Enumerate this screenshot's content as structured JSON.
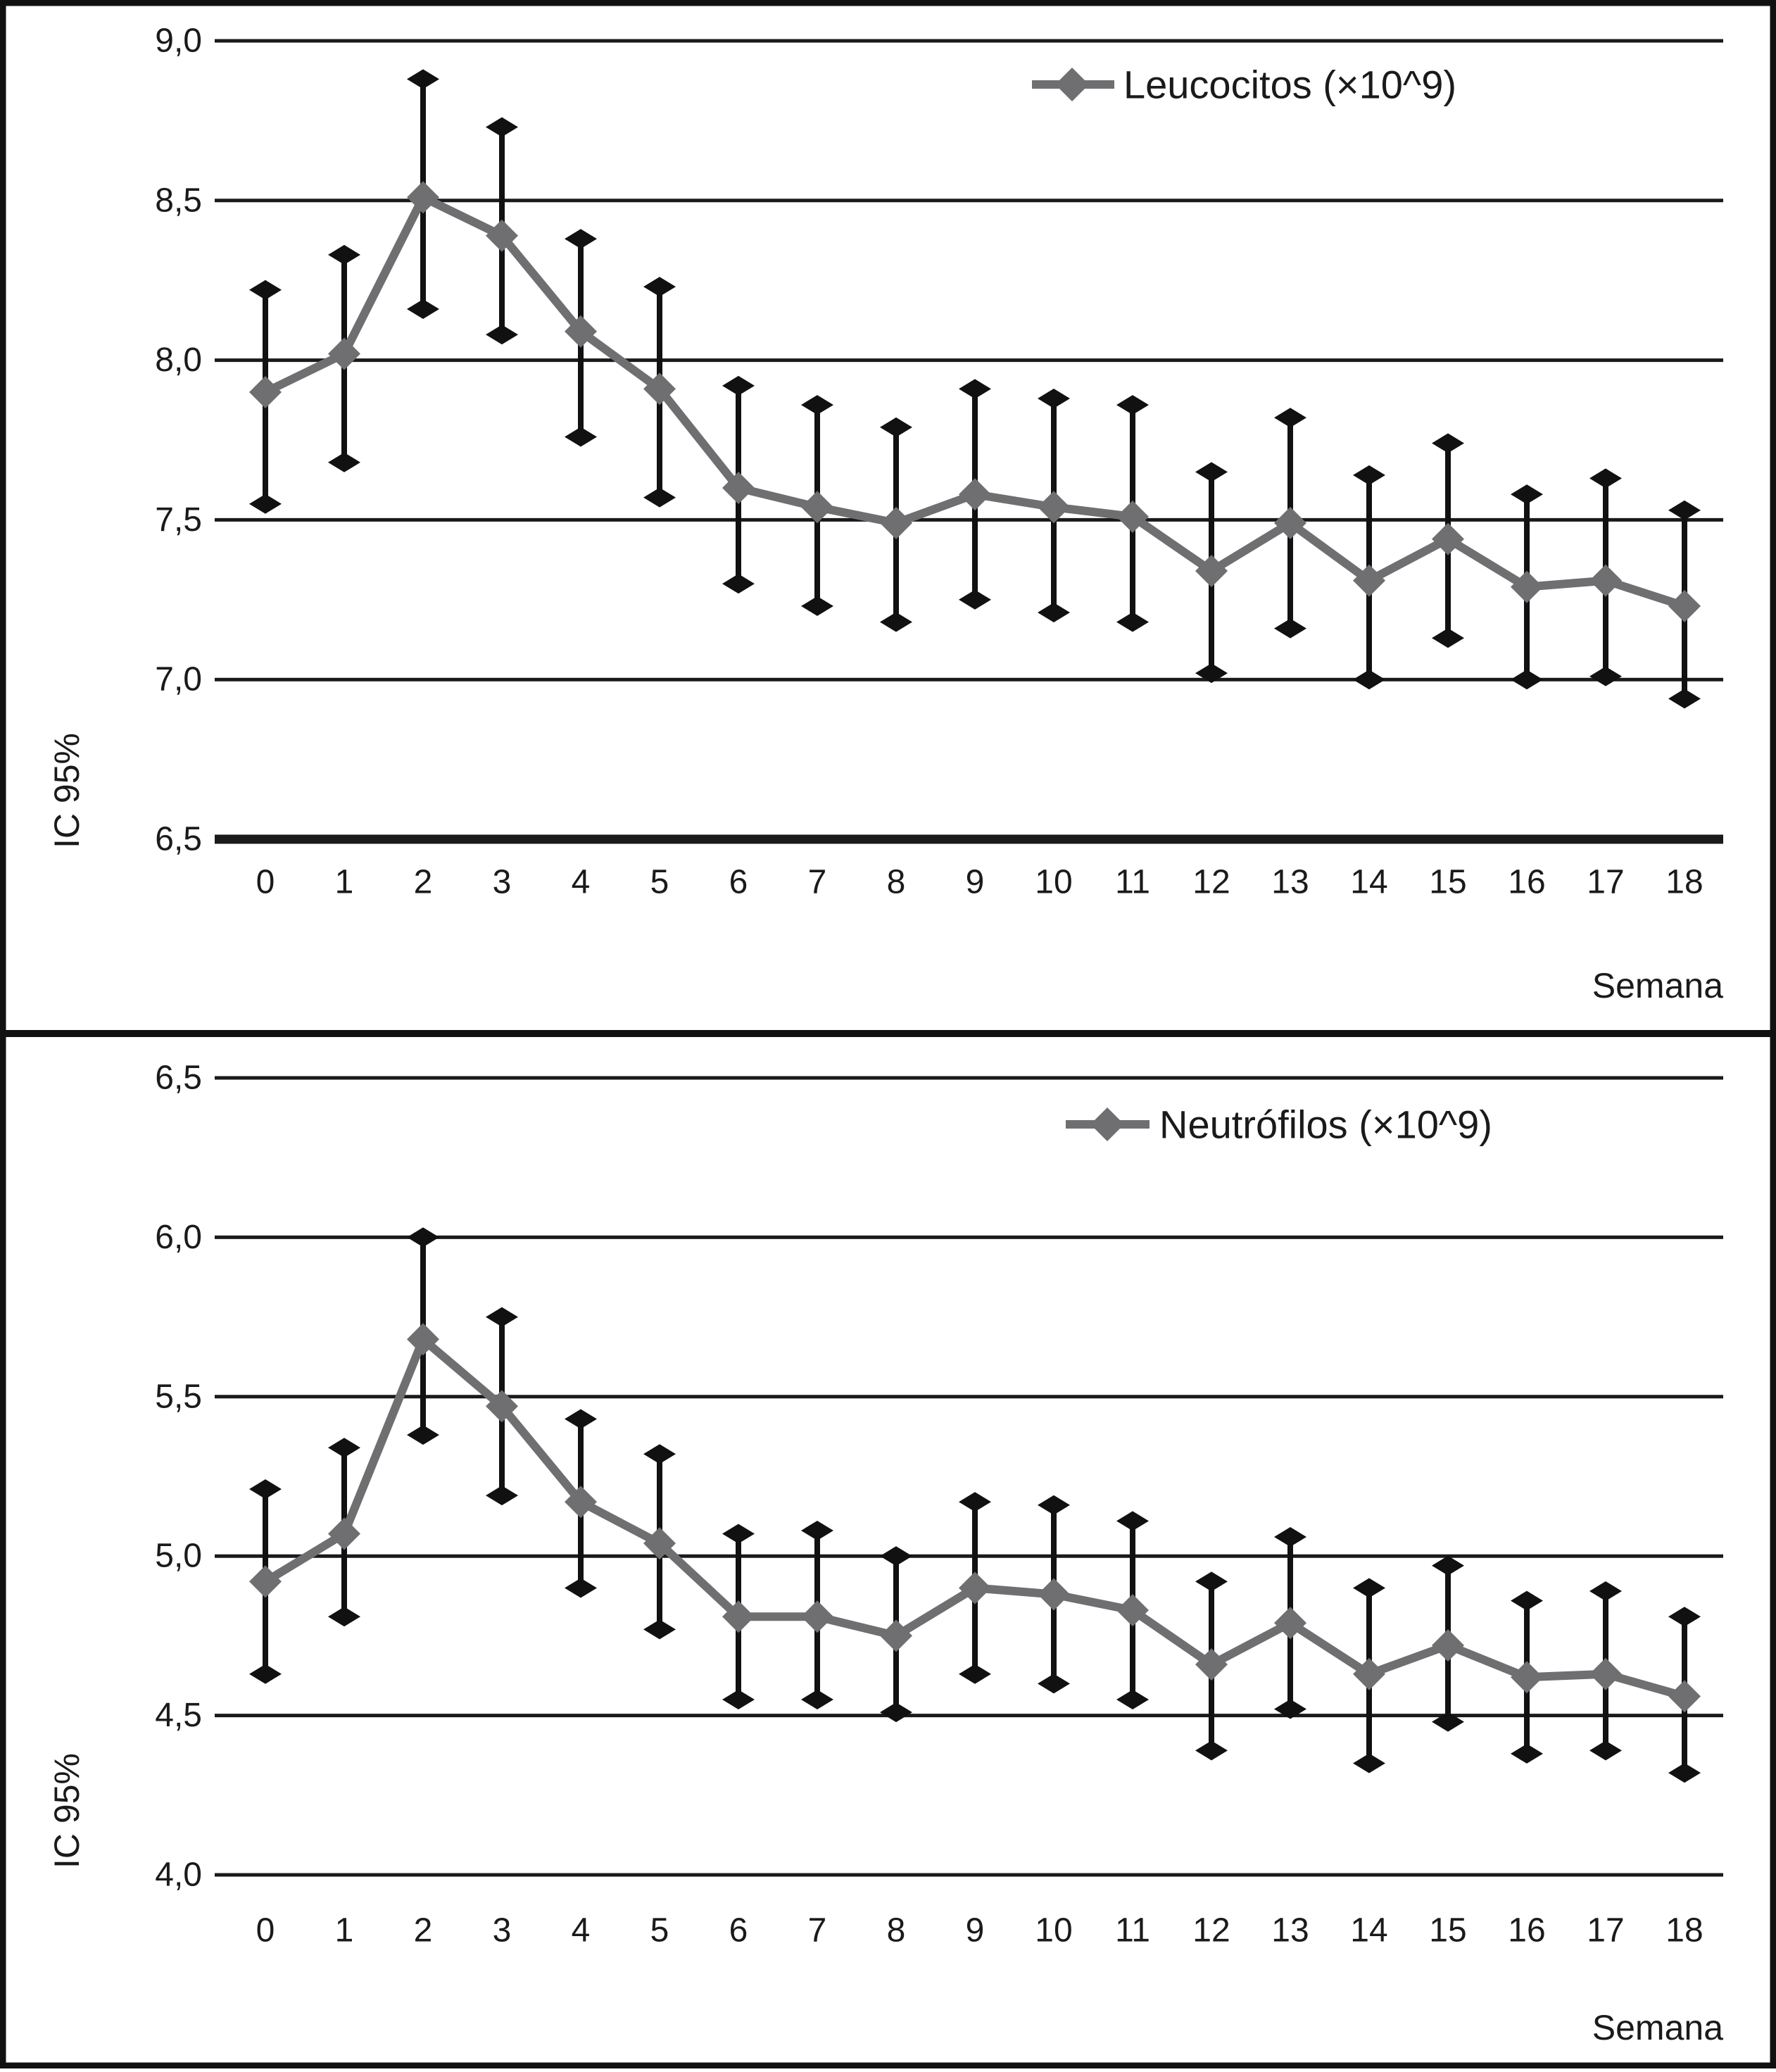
{
  "figure": {
    "background": "#ffffff",
    "frame_color": "#111111",
    "grid_color": "#1a1a1a",
    "error_bar_color": "#111111",
    "series_color": "#6f6f72",
    "text_color": "#1a1a1a"
  },
  "chart_data": [
    {
      "type": "line",
      "legend": "Leucocitos (×10^9)",
      "legend_position": "top-right",
      "legend_marker": "diamond-icon",
      "ylabel": "IC 95%",
      "xlabel": "Semana",
      "grid": "horizontal",
      "ylim": [
        6.5,
        9.0
      ],
      "y_tick_values": [
        9.0,
        8.5,
        8.0,
        7.5,
        7.0,
        6.5
      ],
      "y_tick_labels": [
        "9,0",
        "8,5",
        "8,0",
        "7,5",
        "7,0",
        "6,5"
      ],
      "x": [
        0,
        1,
        2,
        3,
        4,
        5,
        6,
        7,
        8,
        9,
        10,
        11,
        12,
        13,
        14,
        15,
        16,
        17,
        18
      ],
      "x_tick_labels": [
        "0",
        "1",
        "2",
        "3",
        "4",
        "5",
        "6",
        "7",
        "8",
        "9",
        "10",
        "11",
        "12",
        "13",
        "14",
        "15",
        "16",
        "17",
        "18"
      ],
      "series": [
        {
          "name": "Leucocitos (×10^9)",
          "mean": [
            7.9,
            8.02,
            8.51,
            8.39,
            8.09,
            7.91,
            7.6,
            7.54,
            7.49,
            7.58,
            7.54,
            7.51,
            7.34,
            7.49,
            7.31,
            7.44,
            7.29,
            7.31,
            7.23
          ],
          "ci_high": [
            8.22,
            8.33,
            8.88,
            8.73,
            8.38,
            8.23,
            7.92,
            7.86,
            7.79,
            7.91,
            7.88,
            7.86,
            7.65,
            7.82,
            7.64,
            7.74,
            7.58,
            7.63,
            7.53
          ],
          "ci_low": [
            7.55,
            7.68,
            8.16,
            8.08,
            7.76,
            7.57,
            7.3,
            7.23,
            7.18,
            7.25,
            7.21,
            7.18,
            7.02,
            7.16,
            7.0,
            7.13,
            7.0,
            7.01,
            6.94
          ]
        }
      ]
    },
    {
      "type": "line",
      "legend": "Neutrófilos (×10^9)",
      "legend_position": "top-right",
      "legend_marker": "diamond-icon",
      "ylabel": "IC 95%",
      "xlabel": "Semana",
      "grid": "horizontal",
      "ylim": [
        4.0,
        6.5
      ],
      "y_tick_values": [
        6.5,
        6.0,
        5.5,
        5.0,
        4.5,
        4.0
      ],
      "y_tick_labels": [
        "6,5",
        "6,0",
        "5,5",
        "5,0",
        "4,5",
        "4,0"
      ],
      "x": [
        0,
        1,
        2,
        3,
        4,
        5,
        6,
        7,
        8,
        9,
        10,
        11,
        12,
        13,
        14,
        15,
        16,
        17,
        18
      ],
      "x_tick_labels": [
        "0",
        "1",
        "2",
        "3",
        "4",
        "5",
        "6",
        "7",
        "8",
        "9",
        "10",
        "11",
        "12",
        "13",
        "14",
        "15",
        "16",
        "17",
        "18"
      ],
      "series": [
        {
          "name": "Neutrófilos (×10^9)",
          "mean": [
            4.92,
            5.07,
            5.68,
            5.47,
            5.17,
            5.04,
            4.81,
            4.81,
            4.75,
            4.9,
            4.88,
            4.83,
            4.66,
            4.79,
            4.63,
            4.72,
            4.62,
            4.63,
            4.56
          ],
          "ci_high": [
            5.21,
            5.34,
            6.0,
            5.75,
            5.43,
            5.32,
            5.07,
            5.08,
            5.0,
            5.17,
            5.16,
            5.11,
            4.92,
            5.06,
            4.9,
            4.97,
            4.86,
            4.89,
            4.81
          ],
          "ci_low": [
            4.63,
            4.81,
            5.38,
            5.19,
            4.9,
            4.77,
            4.55,
            4.55,
            4.51,
            4.63,
            4.6,
            4.55,
            4.39,
            4.52,
            4.35,
            4.48,
            4.38,
            4.39,
            4.32
          ]
        }
      ]
    }
  ]
}
